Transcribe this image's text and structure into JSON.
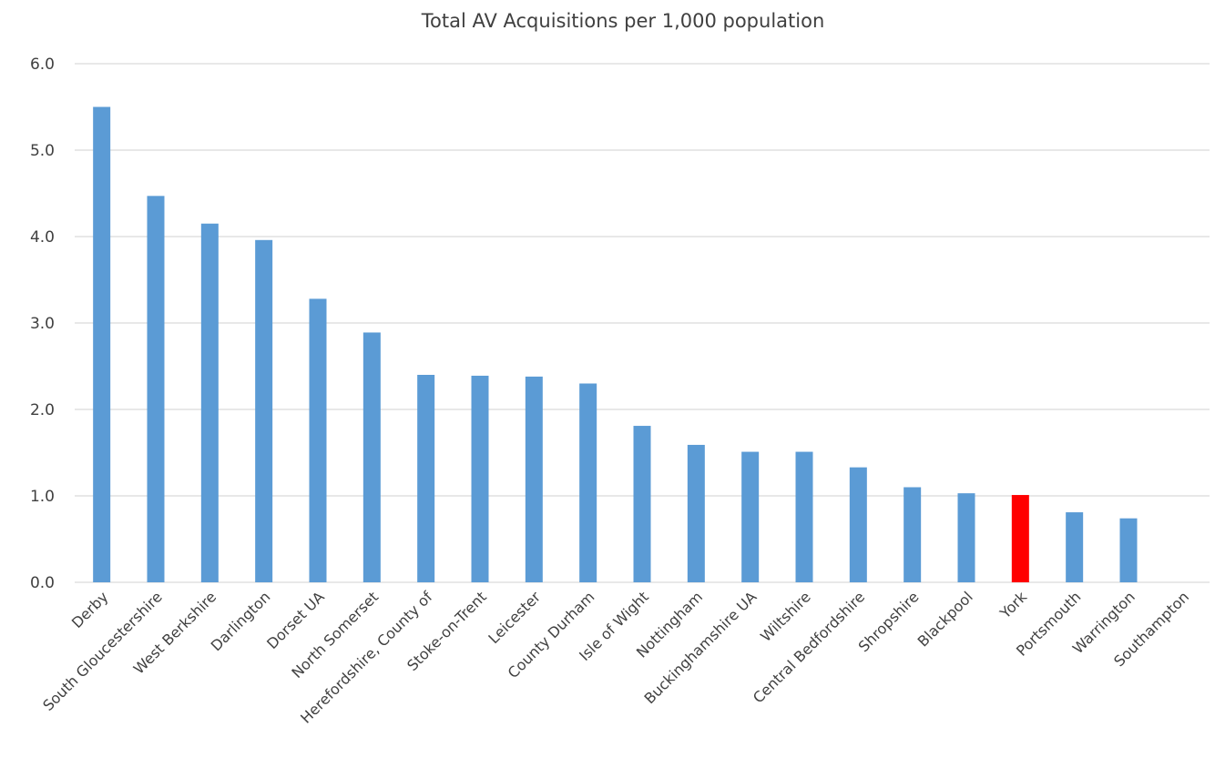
{
  "chart_data": {
    "type": "bar",
    "title": "Total AV Acquisitions per 1,000 population",
    "xlabel": "",
    "ylabel": "",
    "ylim": [
      0,
      6
    ],
    "yticks": [
      "0.0",
      "1.0",
      "2.0",
      "3.0",
      "4.0",
      "5.0",
      "6.0"
    ],
    "grid": true,
    "legend": "none",
    "colors": {
      "default": "#5b9bd5",
      "highlight": "#ff0000"
    },
    "categories": [
      "Derby",
      "South Gloucestershire",
      "West Berkshire",
      "Darlington",
      "Dorset UA",
      "North Somerset",
      "Herefordshire, County of",
      "Stoke-on-Trent",
      "Leicester",
      "County Durham",
      "Isle of Wight",
      "Nottingham",
      "Buckinghamshire UA",
      "Wiltshire",
      "Central Bedfordshire",
      "Shropshire",
      "Blackpool",
      "York",
      "Portsmouth",
      "Warrington",
      "Southampton"
    ],
    "values": [
      5.5,
      4.47,
      4.15,
      3.96,
      3.28,
      2.89,
      2.4,
      2.39,
      2.38,
      2.3,
      1.81,
      1.59,
      1.51,
      1.51,
      1.33,
      1.1,
      1.03,
      1.01,
      0.81,
      0.74,
      0
    ],
    "highlight": [
      "York"
    ]
  }
}
